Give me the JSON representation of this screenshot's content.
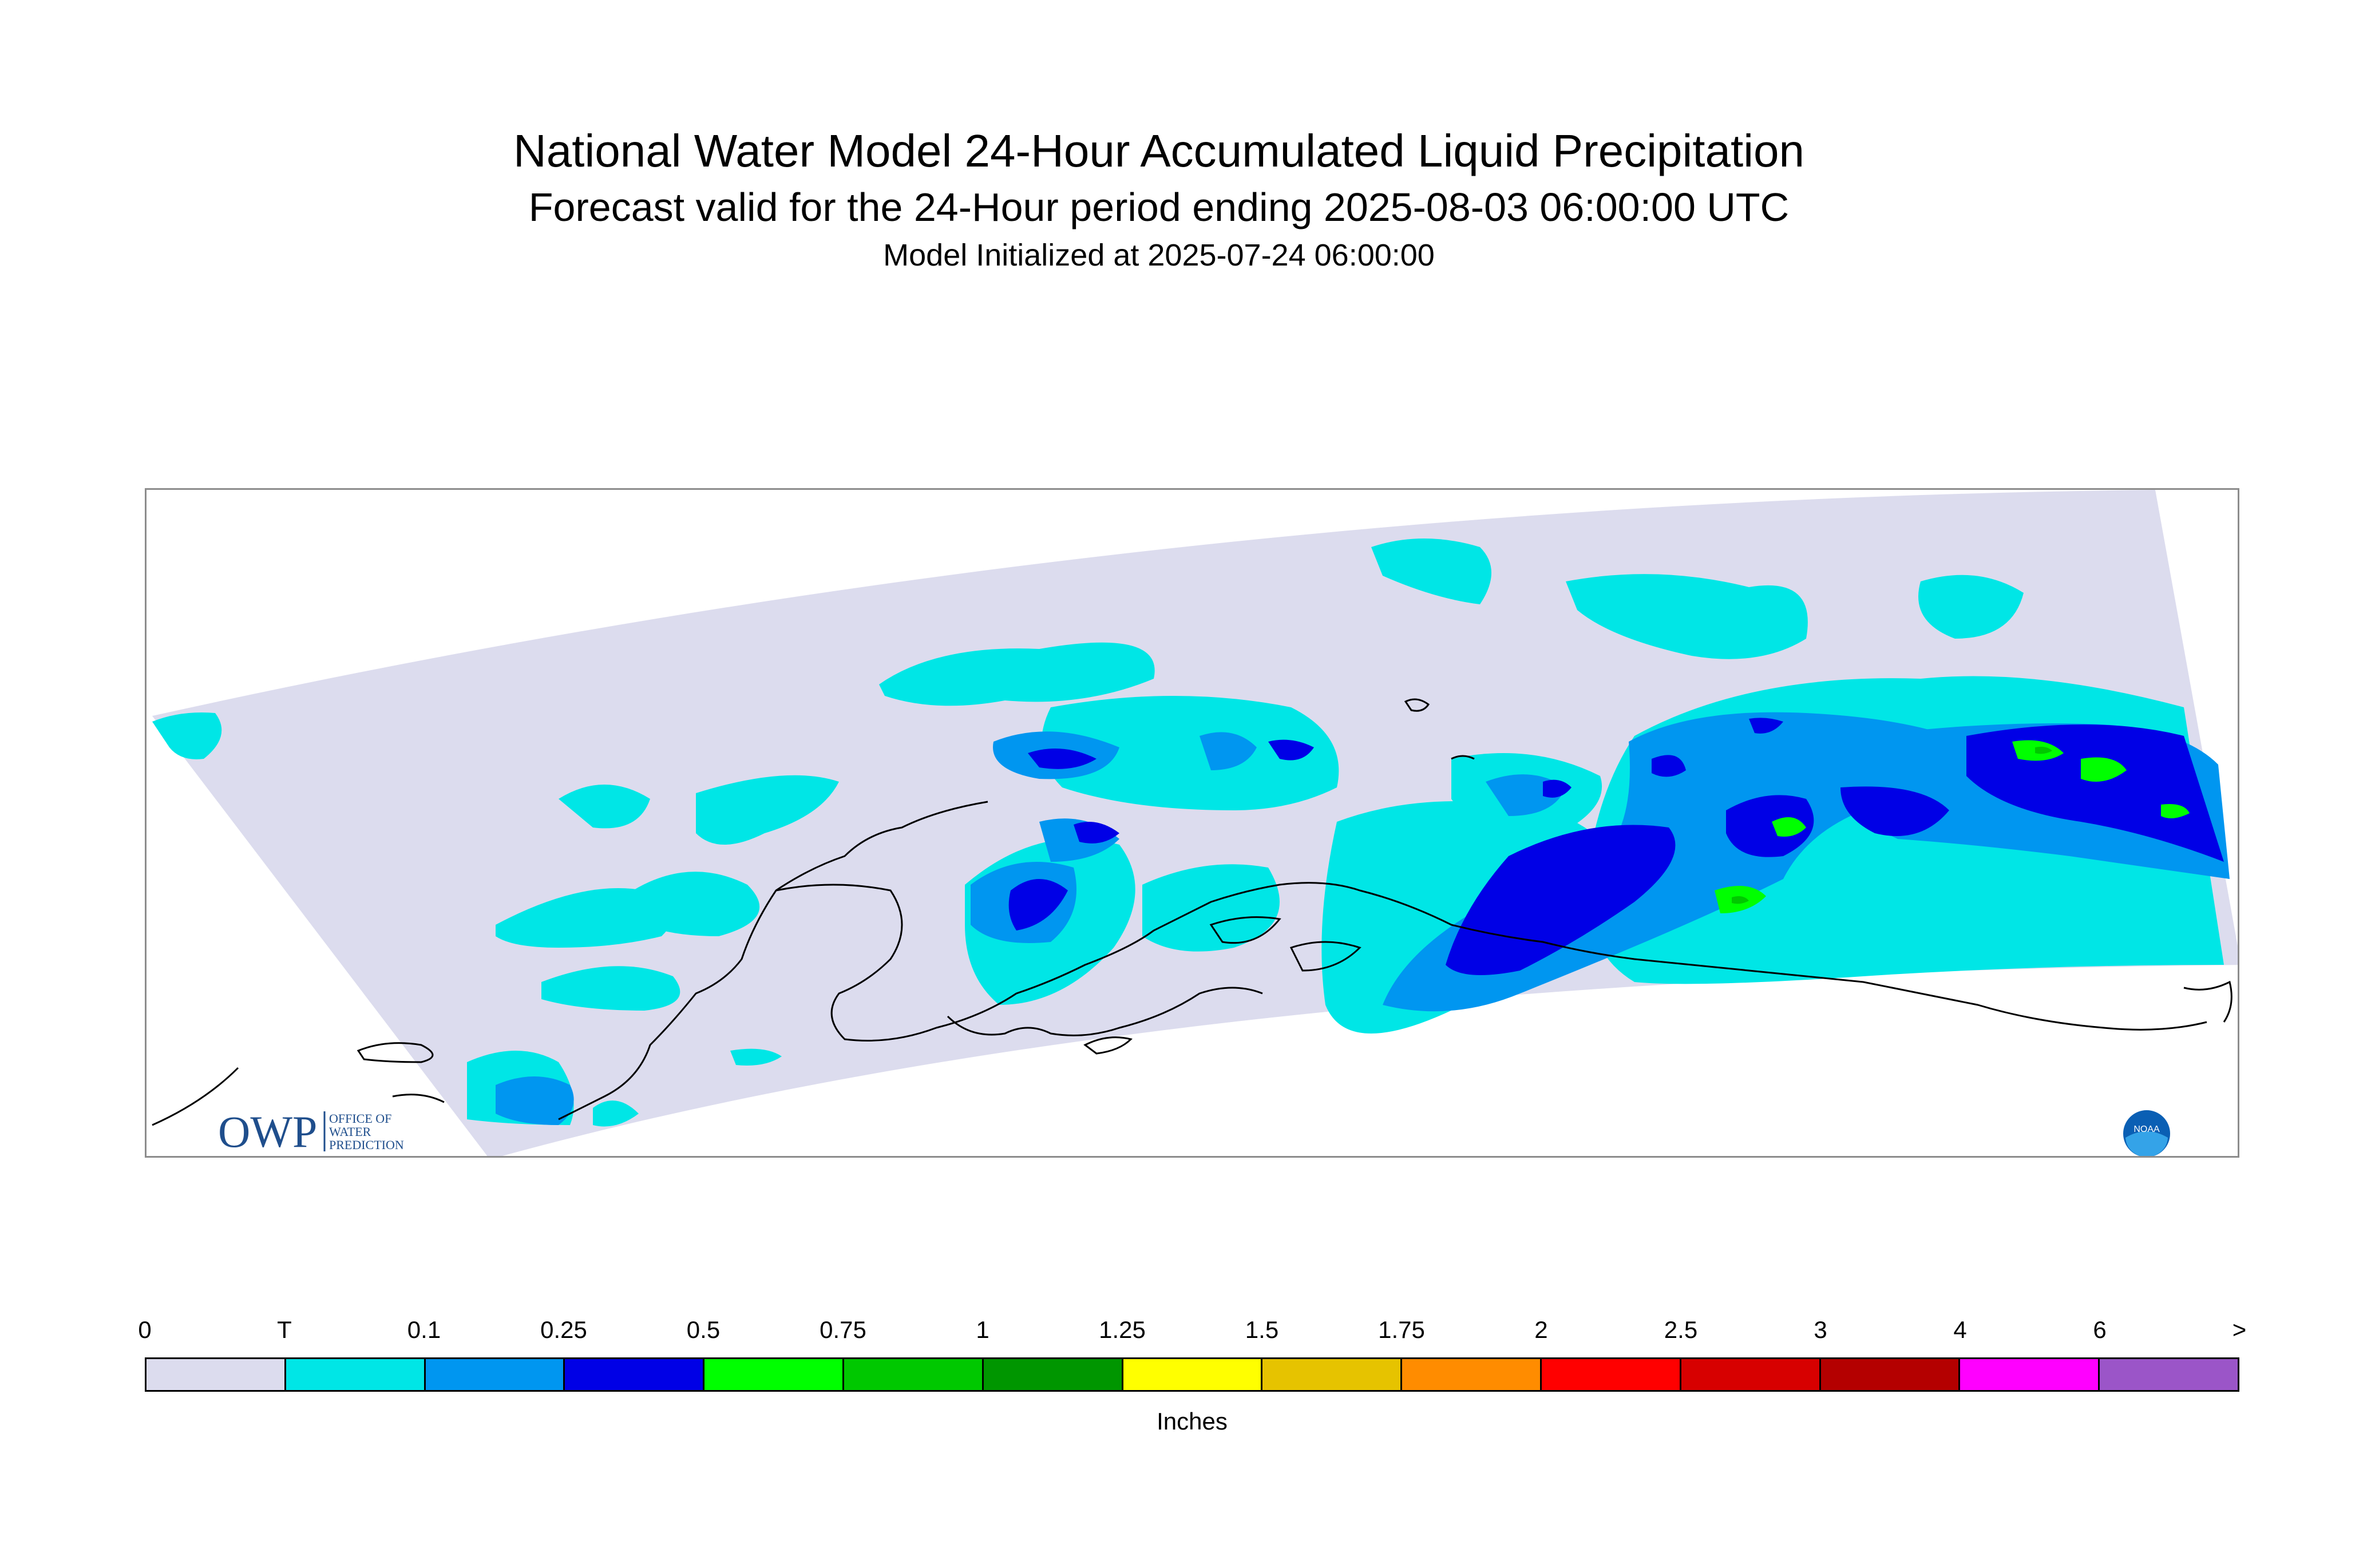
{
  "title": "National Water Model 24-Hour Accumulated Liquid Precipitation",
  "subtitle": "Forecast valid for the 24-Hour period ending 2025-08-03 06:00:00 UTC",
  "init_line": "Model Initialized at 2025-07-24 06:00:00",
  "logos": {
    "owp_letters": "OWP",
    "owp_text_lines": [
      "OFFICE OF",
      "WATER",
      "PREDICTION"
    ],
    "noaa_text": "NOAA"
  },
  "legend": {
    "units": "Inches",
    "tick_labels": [
      "0",
      "T",
      "0.1",
      "0.25",
      "0.5",
      "0.75",
      "1",
      "1.25",
      "1.5",
      "1.75",
      "2",
      "2.5",
      "3",
      "4",
      "6",
      ">"
    ],
    "colors": [
      "#dcdcee",
      "#00e6e6",
      "#0096f0",
      "#0000e6",
      "#00ff00",
      "#00c800",
      "#009600",
      "#ffff00",
      "#e6c300",
      "#ff8c00",
      "#ff0000",
      "#d70000",
      "#b40000",
      "#ff00ff",
      "#9b55c8"
    ]
  },
  "map": {
    "region": "Alaska",
    "domain_color": "#dcdcee",
    "coastline_color": "#000000"
  }
}
